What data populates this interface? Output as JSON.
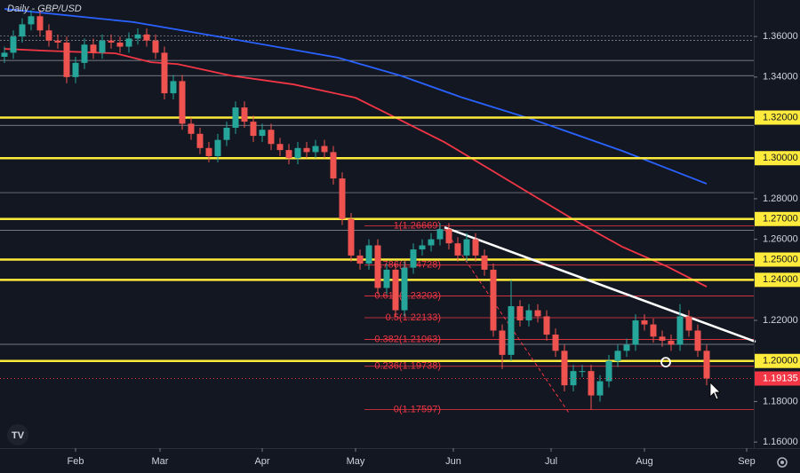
{
  "chart_data": {
    "type": "candlestick",
    "title": "Daily - GBP/USD",
    "up_color": "#26a69a",
    "down_color": "#ef5350",
    "xlim": [
      -1,
      168.6
    ],
    "ylim": [
      1.157,
      1.378
    ],
    "xticks": [
      {
        "value": 16,
        "label": "Feb"
      },
      {
        "value": 35,
        "label": "Mar"
      },
      {
        "value": 58,
        "label": "Apr"
      },
      {
        "value": 79,
        "label": "May"
      },
      {
        "value": 101,
        "label": "Jun"
      },
      {
        "value": 123,
        "label": "Jul"
      },
      {
        "value": 144,
        "label": "Aug"
      },
      {
        "value": 167,
        "label": "Sep"
      }
    ],
    "yticks": [
      {
        "value": 1.16,
        "label": "1.16000"
      },
      {
        "value": 1.18,
        "label": "1.18000"
      },
      {
        "value": 1.2,
        "label": "1.20000"
      },
      {
        "value": 1.22,
        "label": "1.22000"
      },
      {
        "value": 1.24,
        "label": "1.24000"
      },
      {
        "value": 1.26,
        "label": "1.26000"
      },
      {
        "value": 1.28,
        "label": "1.28000"
      },
      {
        "value": 1.3,
        "label": "1.30000"
      },
      {
        "value": 1.32,
        "label": "1.32000"
      },
      {
        "value": 1.34,
        "label": "1.34000"
      },
      {
        "value": 1.36,
        "label": "1.36000"
      }
    ],
    "x": [
      0,
      2,
      4,
      6,
      8,
      10,
      12,
      14,
      16,
      18,
      20,
      22,
      24,
      26,
      28,
      30,
      32,
      34,
      36,
      38,
      40,
      42,
      44,
      46,
      48,
      50,
      52,
      54,
      56,
      58,
      60,
      62,
      64,
      66,
      68,
      70,
      72,
      74,
      76,
      78,
      80,
      82,
      84,
      86,
      88,
      90,
      92,
      94,
      96,
      98,
      100,
      102,
      104,
      106,
      108,
      110,
      112,
      114,
      116,
      118,
      120,
      122,
      124,
      126,
      128,
      130,
      132,
      134,
      136,
      138,
      140,
      142,
      144,
      146,
      148,
      150,
      152,
      154,
      156,
      158
    ],
    "candles": [
      [
        1.35,
        1.355,
        1.347,
        1.352
      ],
      [
        1.352,
        1.363,
        1.349,
        1.36
      ],
      [
        1.36,
        1.369,
        1.357,
        1.366
      ],
      [
        1.366,
        1.373,
        1.363,
        1.37
      ],
      [
        1.37,
        1.373,
        1.36,
        1.363
      ],
      [
        1.363,
        1.366,
        1.355,
        1.358
      ],
      [
        1.358,
        1.361,
        1.354,
        1.357
      ],
      [
        1.357,
        1.36,
        1.337,
        1.34
      ],
      [
        1.34,
        1.35,
        1.337,
        1.347
      ],
      [
        1.347,
        1.359,
        1.344,
        1.356
      ],
      [
        1.356,
        1.359,
        1.349,
        1.352
      ],
      [
        1.352,
        1.361,
        1.349,
        1.358
      ],
      [
        1.358,
        1.361,
        1.354,
        1.357
      ],
      [
        1.357,
        1.36,
        1.352,
        1.355
      ],
      [
        1.355,
        1.362,
        1.352,
        1.359
      ],
      [
        1.359,
        1.364,
        1.356,
        1.361
      ],
      [
        1.361,
        1.364,
        1.355,
        1.358
      ],
      [
        1.358,
        1.361,
        1.349,
        1.352
      ],
      [
        1.352,
        1.355,
        1.329,
        1.332
      ],
      [
        1.332,
        1.341,
        1.329,
        1.338
      ],
      [
        1.338,
        1.341,
        1.314,
        1.317
      ],
      [
        1.317,
        1.32,
        1.309,
        1.312
      ],
      [
        1.312,
        1.315,
        1.302,
        1.305
      ],
      [
        1.305,
        1.308,
        1.298,
        1.301
      ],
      [
        1.301,
        1.312,
        1.298,
        1.309
      ],
      [
        1.309,
        1.318,
        1.306,
        1.315
      ],
      [
        1.315,
        1.328,
        1.312,
        1.325
      ],
      [
        1.325,
        1.328,
        1.315,
        1.318
      ],
      [
        1.318,
        1.321,
        1.308,
        1.311
      ],
      [
        1.311,
        1.317,
        1.308,
        1.314
      ],
      [
        1.314,
        1.317,
        1.304,
        1.307
      ],
      [
        1.307,
        1.31,
        1.301,
        1.304
      ],
      [
        1.304,
        1.307,
        1.297,
        1.3
      ],
      [
        1.3,
        1.308,
        1.297,
        1.305
      ],
      [
        1.305,
        1.308,
        1.3,
        1.303
      ],
      [
        1.303,
        1.309,
        1.3,
        1.306
      ],
      [
        1.306,
        1.309,
        1.3,
        1.303
      ],
      [
        1.303,
        1.306,
        1.287,
        1.29
      ],
      [
        1.29,
        1.293,
        1.267,
        1.27
      ],
      [
        1.27,
        1.273,
        1.249,
        1.252
      ],
      [
        1.252,
        1.255,
        1.245,
        1.248
      ],
      [
        1.248,
        1.26,
        1.245,
        1.257
      ],
      [
        1.257,
        1.26,
        1.233,
        1.236
      ],
      [
        1.236,
        1.248,
        1.233,
        1.245
      ],
      [
        1.245,
        1.248,
        1.222,
        1.225
      ],
      [
        1.225,
        1.249,
        1.222,
        1.246
      ],
      [
        1.246,
        1.258,
        1.243,
        1.255
      ],
      [
        1.255,
        1.26,
        1.252,
        1.257
      ],
      [
        1.257,
        1.263,
        1.254,
        1.26
      ],
      [
        1.26,
        1.268,
        1.257,
        1.265
      ],
      [
        1.265,
        1.268,
        1.255,
        1.258
      ],
      [
        1.258,
        1.261,
        1.249,
        1.252
      ],
      [
        1.252,
        1.263,
        1.249,
        1.26
      ],
      [
        1.26,
        1.263,
        1.249,
        1.252
      ],
      [
        1.252,
        1.255,
        1.242,
        1.245
      ],
      [
        1.245,
        1.248,
        1.212,
        1.215
      ],
      [
        1.215,
        1.218,
        1.196,
        1.203
      ],
      [
        1.203,
        1.24,
        1.2,
        1.227
      ],
      [
        1.227,
        1.23,
        1.217,
        1.22
      ],
      [
        1.22,
        1.228,
        1.217,
        1.225
      ],
      [
        1.225,
        1.228,
        1.219,
        1.222
      ],
      [
        1.222,
        1.225,
        1.21,
        1.213
      ],
      [
        1.213,
        1.216,
        1.202,
        1.205
      ],
      [
        1.205,
        1.208,
        1.185,
        1.188
      ],
      [
        1.188,
        1.198,
        1.185,
        1.195
      ],
      [
        1.195,
        1.198,
        1.192,
        1.195
      ],
      [
        1.195,
        1.198,
        1.176,
        1.183
      ],
      [
        1.183,
        1.193,
        1.18,
        1.19
      ],
      [
        1.19,
        1.203,
        1.187,
        1.2
      ],
      [
        1.2,
        1.208,
        1.197,
        1.205
      ],
      [
        1.205,
        1.211,
        1.202,
        1.208
      ],
      [
        1.208,
        1.223,
        1.205,
        1.22
      ],
      [
        1.22,
        1.223,
        1.215,
        1.218
      ],
      [
        1.218,
        1.221,
        1.209,
        1.212
      ],
      [
        1.212,
        1.215,
        1.207,
        1.21
      ],
      [
        1.21,
        1.213,
        1.205,
        1.208
      ],
      [
        1.208,
        1.228,
        1.205,
        1.222
      ],
      [
        1.222,
        1.225,
        1.212,
        1.215
      ],
      [
        1.215,
        1.218,
        1.202,
        1.205
      ],
      [
        1.205,
        1.208,
        1.188,
        1.19135
      ]
    ],
    "moving_averages": [
      {
        "color": "#2962ff",
        "x": [
          0,
          29,
          49,
          75,
          89,
          103,
          119,
          139,
          158
        ],
        "values": [
          1.3736,
          1.3671,
          1.3596,
          1.3496,
          1.3408,
          1.3299,
          1.319,
          1.3036,
          1.2874
        ]
      },
      {
        "color": "#f23645",
        "x": [
          0,
          9,
          25,
          33,
          39,
          51,
          65,
          79,
          89,
          99,
          109,
          119,
          129,
          139,
          149,
          158
        ],
        "values": [
          1.3539,
          1.353,
          1.3517,
          1.3473,
          1.3464,
          1.3407,
          1.3364,
          1.3298,
          1.3189,
          1.3079,
          1.2948,
          1.2816,
          1.2685,
          1.2563,
          1.2467,
          1.2366
        ]
      }
    ],
    "thin_levels": [
      1.3603,
      1.3581,
      1.3482,
      1.3407,
      1.3162,
      1.283,
      1.2645,
      1.2082
    ],
    "key_levels": {
      "color": "#ffeb3b",
      "levels": [
        {
          "value": 1.32,
          "label": "1.32000"
        },
        {
          "value": 1.3,
          "label": "1.30000"
        },
        {
          "value": 1.27,
          "label": "1.27000"
        },
        {
          "value": 1.25,
          "label": "1.25000"
        },
        {
          "value": 1.24,
          "label": "1.24000"
        },
        {
          "value": 1.2,
          "label": "1.20000"
        }
      ]
    },
    "fibonacci": {
      "color": "#f23645",
      "start": 81,
      "levels": [
        {
          "value": 1.26669,
          "label": "1(1.26669)"
        },
        {
          "value": 1.24728,
          "label": "0.786(1.24728)"
        },
        {
          "value": 1.23203,
          "label": "0.618(1.23203)"
        },
        {
          "value": 1.22133,
          "label": "0.5(1.22133)"
        },
        {
          "value": 1.21063,
          "label": "0.382(1.21063)"
        },
        {
          "value": 1.19738,
          "label": "0.236(1.19738)"
        },
        {
          "value": 1.17597,
          "label": "0(1.17597)"
        }
      ]
    },
    "trendline": {
      "color": "#ffffff",
      "x": [
        99,
        169
      ],
      "values": [
        1.2659,
        1.2095
      ]
    },
    "fib_diagonal": {
      "color": "#f23645",
      "x": [
        99,
        127
      ],
      "values": [
        1.265,
        1.1744
      ]
    },
    "marker": {
      "x": 148.8,
      "value": 1.1994
    },
    "last_price": {
      "value": 1.19135,
      "label": "1.19135",
      "color": "#f23645"
    }
  }
}
